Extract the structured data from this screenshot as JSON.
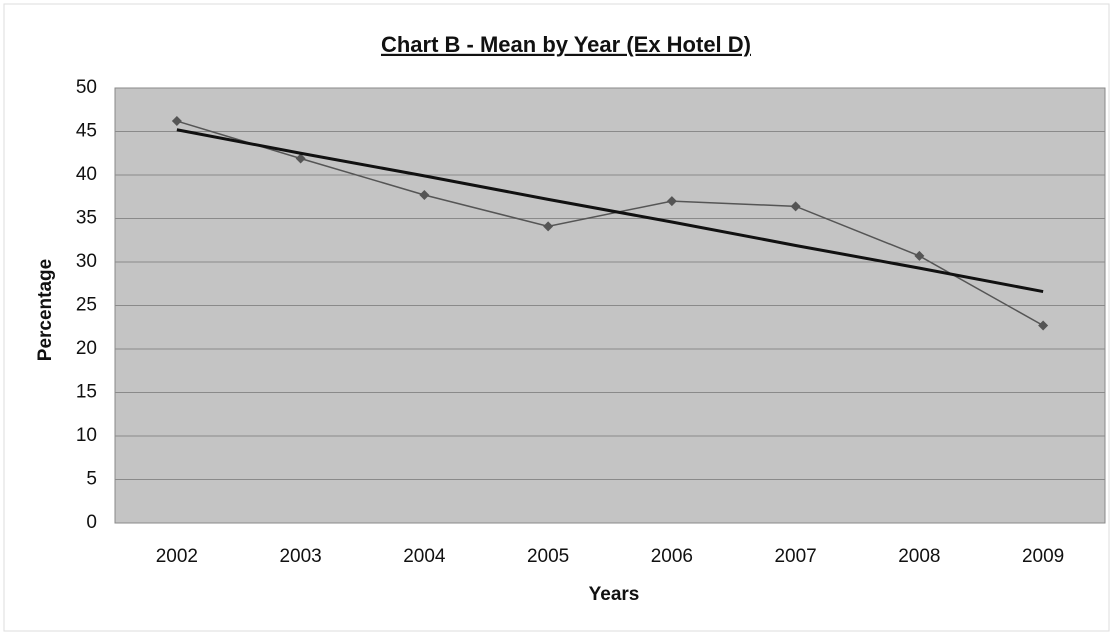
{
  "chart_data": {
    "type": "line",
    "title": "Chart B - Mean by Year (Ex Hotel D)",
    "x_label": "Years",
    "y_label": "Percentage",
    "categories": [
      "2002",
      "2003",
      "2004",
      "2005",
      "2006",
      "2007",
      "2008",
      "2009"
    ],
    "series": [
      {
        "color": "#555555",
        "values": [
          46.2,
          41.9,
          37.7,
          34.1,
          37.0,
          36.4,
          30.7,
          22.7
        ]
      },
      {
        "color": "#111111",
        "values": [
          45.2,
          42.5,
          39.9,
          37.2,
          34.6,
          31.9,
          29.3,
          26.6
        ]
      }
    ],
    "ylim": [
      0,
      50
    ],
    "yticks": [
      0,
      5,
      10,
      15,
      20,
      25,
      30,
      35,
      40,
      45,
      50
    ],
    "grid": true
  }
}
